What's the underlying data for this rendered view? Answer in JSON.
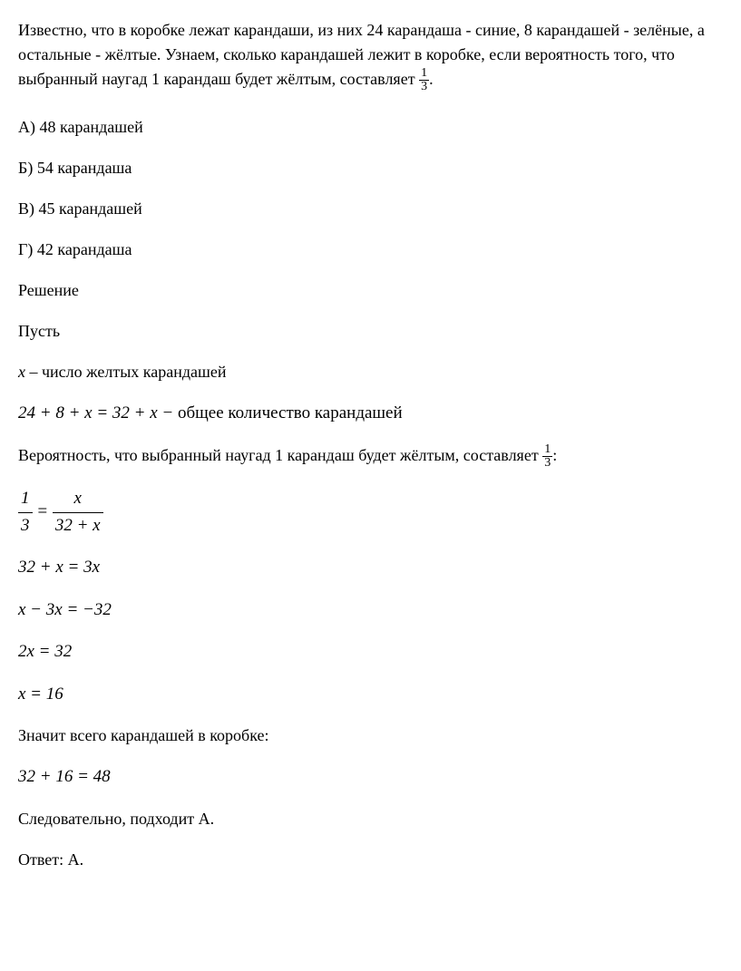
{
  "problem": {
    "statement_part1": "Известно, что в коробке лежат карандаши, из них 24 карандаша - синие, 8 карандашей - зелёные, а остальные - жёлтые. Узнаем, сколько карандашей лежит в коробке, если вероятность того, что выбранный наугад 1 карандаш будет жёлтым, составляет ",
    "statement_frac_num": "1",
    "statement_frac_den": "3",
    "statement_end": "."
  },
  "options": {
    "a": "А) 48 карандашей",
    "b": "Б) 54 карандаша",
    "c": "В) 45 карандашей",
    "d": "Г) 42 карандаша"
  },
  "solution": {
    "header": "Решение",
    "let": "Пусть",
    "x_def": " – число желтых карандашей",
    "total_eq": "24 + 8 + x = 32 + x −",
    "total_label": "  общее количество карандашей",
    "prob_text": "Вероятность, что выбранный наугад 1 карандаш будет жёлтым, составляет ",
    "prob_frac_num": "1",
    "prob_frac_den": "3",
    "prob_end": ":",
    "eq1_left_num": "1",
    "eq1_left_den": "3",
    "eq1_right_num": "x",
    "eq1_right_den": "32 + x",
    "eq2": "32 + x = 3x",
    "eq3": "x − 3x = −32",
    "eq4": "2x = 32",
    "eq5": "x = 16",
    "conclusion1": "Значит всего карандашей в коробке:",
    "eq6": "32 + 16 = 48",
    "conclusion2": "Следовательно, подходит А.",
    "answer": "Ответ: А."
  }
}
